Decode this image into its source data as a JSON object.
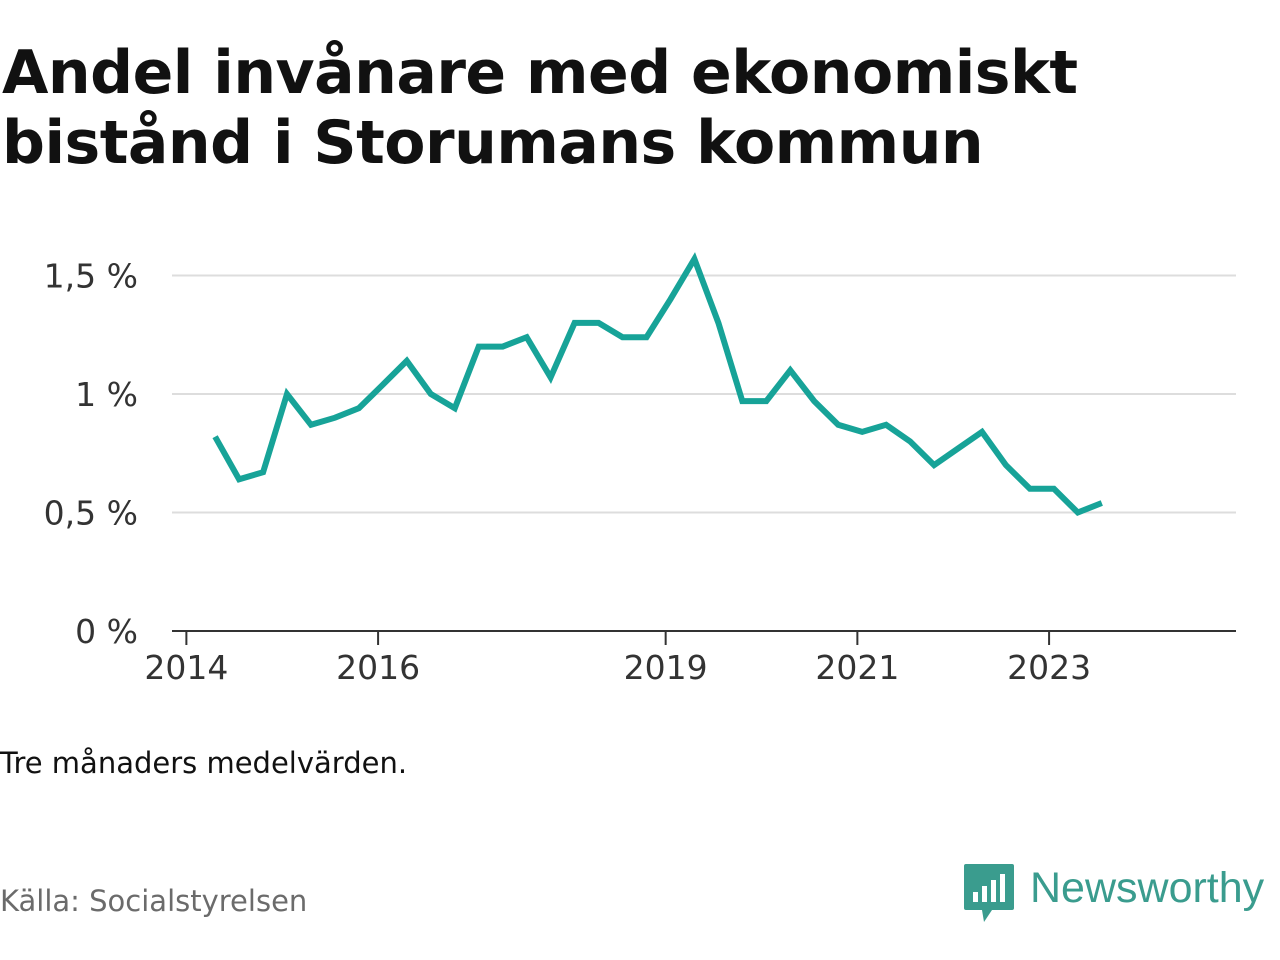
{
  "title": "Andel invånare med ekonomiskt bistånd i Storumans kommun",
  "note": "Tre månaders medelvärden.",
  "source": "Källa: Socialstyrelsen",
  "brand": {
    "name": "Newsworthy",
    "logo_icon": "bar-chart-speech-bubble-icon",
    "color": "#3a9c8e"
  },
  "chart_data": {
    "type": "line",
    "title": "Andel invånare med ekonomiskt bistånd i Storumans kommun",
    "xlabel": "",
    "ylabel": "",
    "x_ticks": [
      {
        "label": "2014",
        "value": 2014.0
      },
      {
        "label": "2016",
        "value": 2016.0
      },
      {
        "label": "2019",
        "value": 2019.0
      },
      {
        "label": "2021",
        "value": 2021.0
      },
      {
        "label": "2023",
        "value": 2023.0
      }
    ],
    "y_ticks": [
      {
        "label": "0 %",
        "value": 0
      },
      {
        "label": "0,5 %",
        "value": 0.5
      },
      {
        "label": "1 %",
        "value": 1.0
      },
      {
        "label": "1,5 %",
        "value": 1.5
      }
    ],
    "xlim": [
      2013.85,
      2024.95
    ],
    "ylim": [
      0,
      1.65
    ],
    "grid": true,
    "line_color": "#17a398",
    "series": [
      {
        "x": [
          2014.3,
          2014.55,
          2014.8,
          2015.05,
          2015.3,
          2015.55,
          2015.8,
          2016.05,
          2016.3,
          2016.55,
          2016.8,
          2017.05,
          2017.3,
          2017.55,
          2017.8,
          2018.05,
          2018.3,
          2018.55,
          2018.8,
          2019.05,
          2019.3,
          2019.55,
          2019.8,
          2020.05,
          2020.3,
          2020.55,
          2020.8,
          2021.05,
          2021.3,
          2021.55,
          2021.8,
          2022.05,
          2022.3,
          2022.55,
          2022.8,
          2023.05,
          2023.3,
          2023.55
        ],
        "values": [
          0.82,
          0.64,
          0.67,
          1.0,
          0.87,
          0.9,
          0.94,
          1.04,
          1.14,
          1.0,
          0.94,
          1.2,
          1.2,
          1.24,
          1.07,
          1.3,
          1.3,
          1.24,
          1.24,
          1.4,
          1.57,
          1.3,
          0.97,
          0.97,
          1.1,
          0.97,
          0.87,
          0.84,
          0.87,
          0.8,
          0.7,
          0.77,
          0.84,
          0.7,
          0.6,
          0.6,
          0.5,
          0.54
        ]
      }
    ]
  }
}
